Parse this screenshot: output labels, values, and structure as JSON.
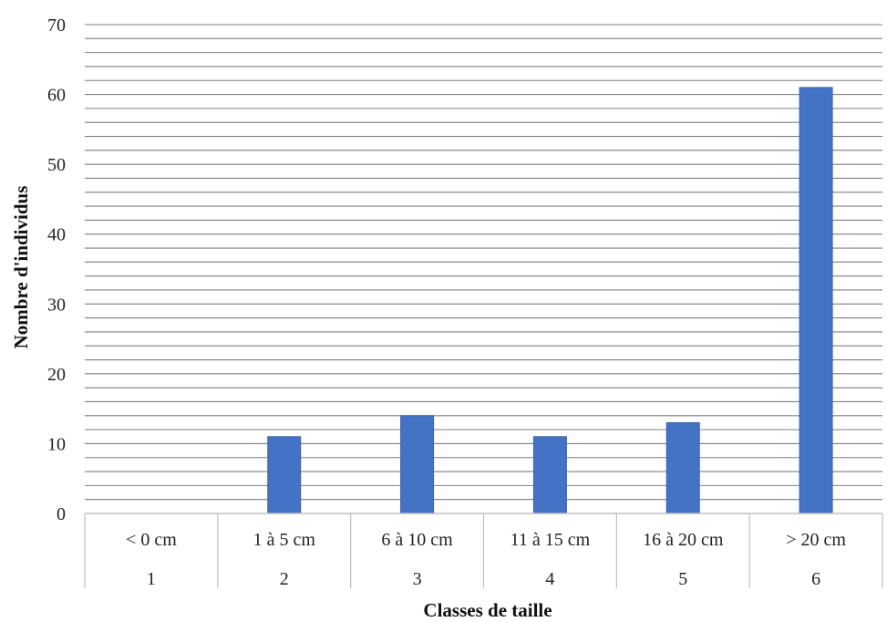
{
  "chart_data": {
    "type": "bar",
    "categories": [
      "< 0 cm",
      "1 à 5 cm",
      "6 à 10 cm",
      "11 à 15 cm",
      "16 à 20 cm",
      "> 20 cm"
    ],
    "category_numbers": [
      "1",
      "2",
      "3",
      "4",
      "5",
      "6"
    ],
    "values": [
      0,
      11,
      14,
      11,
      13,
      61
    ],
    "xlabel": "Classes de taille",
    "ylabel": "Nombre d'individus",
    "ylim": [
      0,
      70
    ],
    "yticks": [
      0,
      10,
      20,
      30,
      40,
      50,
      60,
      70
    ],
    "minor_gridline_step": 2,
    "grid": true,
    "colors": {
      "bar": "#4472C4",
      "bar_edge": "#3A63AD",
      "gridline": "#7f7f7f",
      "axis": "#bfbfbf"
    }
  }
}
